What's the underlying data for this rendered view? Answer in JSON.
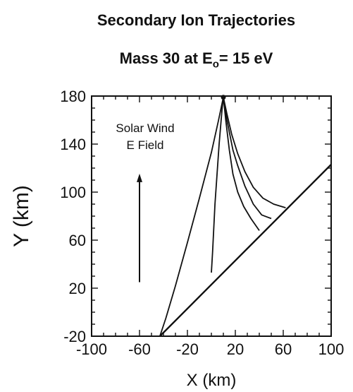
{
  "chart_data": {
    "type": "line",
    "title": "Secondary Ion Trajectories",
    "subtitle_prefix": "Mass 30 at E",
    "subtitle_sub": "o",
    "subtitle_suffix": "= 15 eV",
    "xlabel": "X (km)",
    "ylabel": "Y (km)",
    "xlim": [
      -100,
      100
    ],
    "ylim": [
      -20,
      180
    ],
    "x_ticks": [
      -100,
      -60,
      -20,
      20,
      60,
      100
    ],
    "y_ticks": [
      -20,
      20,
      60,
      100,
      140,
      180
    ],
    "grid": false,
    "annotation": {
      "lines": [
        "Solar Wind",
        "E Field"
      ],
      "arrow_x": -60,
      "arrow_from_y": 25,
      "arrow_to_y": 113
    },
    "source_point": {
      "x": 10,
      "y": 179
    },
    "boundary_line": {
      "x": [
        -43,
        100
      ],
      "y": [
        -20,
        123
      ]
    },
    "trajectories": [
      {
        "x": [
          10,
          6,
          0,
          -10,
          -20,
          -30,
          -38,
          -43
        ],
        "y": [
          179,
          160,
          133,
          95,
          58,
          22,
          -5,
          -20
        ]
      },
      {
        "x": [
          10,
          9,
          6.5,
          3,
          1,
          0
        ],
        "y": [
          179,
          170,
          140,
          90,
          50,
          33
        ]
      },
      {
        "x": [
          10,
          12,
          15,
          18,
          22,
          27,
          33,
          40
        ],
        "y": [
          179,
          160,
          135,
          115,
          100,
          88,
          78,
          68
        ]
      },
      {
        "x": [
          10,
          13,
          18,
          22,
          28,
          35,
          42,
          50
        ],
        "y": [
          179,
          160,
          135,
          122,
          105,
          90,
          81,
          78
        ]
      },
      {
        "x": [
          10,
          13,
          17,
          22,
          28,
          35,
          43,
          52,
          62
        ],
        "y": [
          179,
          165,
          148,
          132,
          117,
          104,
          95,
          90,
          87
        ]
      }
    ]
  }
}
